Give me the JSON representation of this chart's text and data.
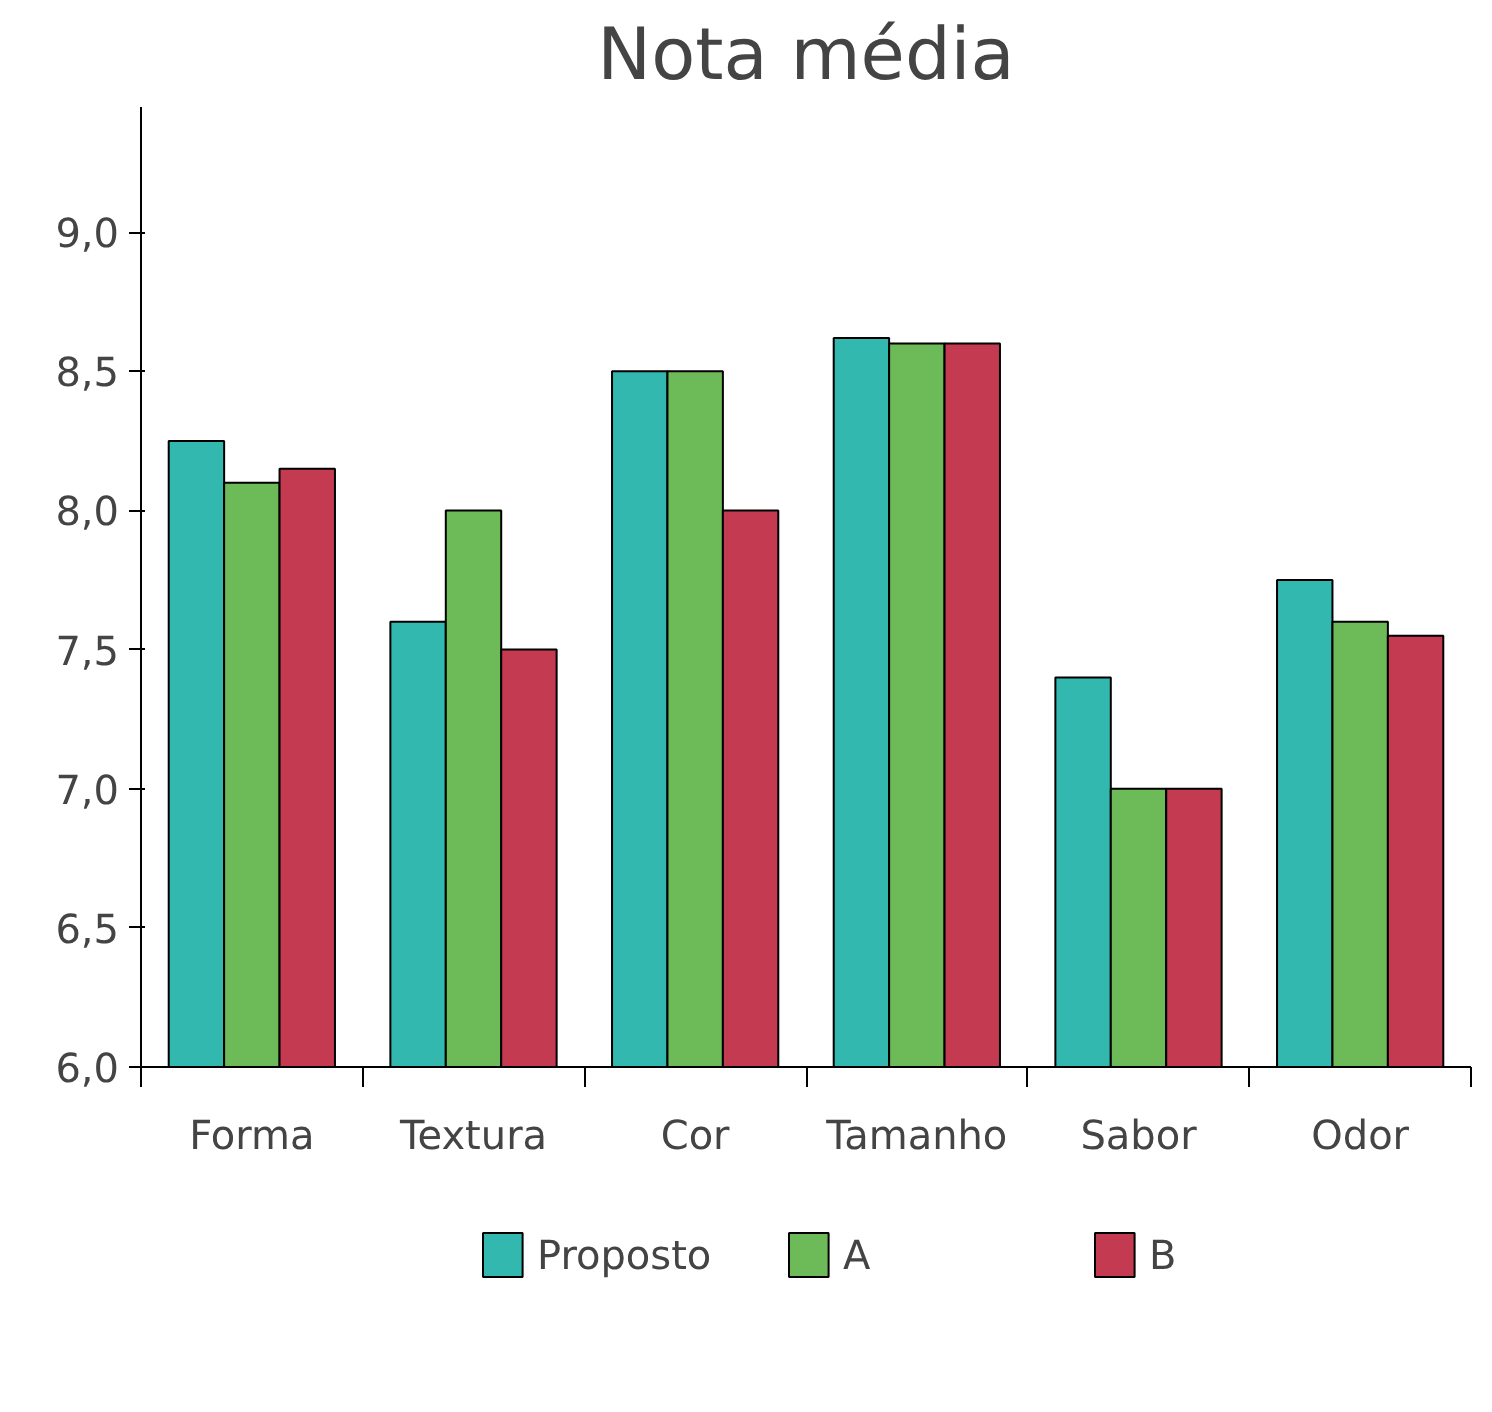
{
  "chart_data": {
    "type": "bar",
    "title": "Nota média",
    "categories": [
      "Forma",
      "Textura",
      "Cor",
      "Tamanho",
      "Sabor",
      "Odor"
    ],
    "series": [
      {
        "name": "Proposto",
        "color": "#33b8b0",
        "values": [
          8.25,
          7.6,
          8.5,
          8.62,
          7.4,
          7.75
        ]
      },
      {
        "name": "A",
        "color": "#6dbb58",
        "values": [
          8.1,
          8.0,
          8.5,
          8.6,
          7.0,
          7.6
        ]
      },
      {
        "name": "B",
        "color": "#c43a50",
        "values": [
          8.15,
          7.5,
          8.0,
          8.6,
          7.0,
          7.55
        ]
      }
    ],
    "ylim": [
      6.0,
      9.45
    ],
    "yticks": [
      {
        "value": 6.0,
        "label": "6,0"
      },
      {
        "value": 6.5,
        "label": "6,5"
      },
      {
        "value": 7.0,
        "label": "7,0"
      },
      {
        "value": 7.5,
        "label": "7,5"
      },
      {
        "value": 8.0,
        "label": "8,0"
      },
      {
        "value": 8.5,
        "label": "8,5"
      },
      {
        "value": 9.0,
        "label": "9,0"
      }
    ],
    "grid": false,
    "legend": "bottom"
  }
}
